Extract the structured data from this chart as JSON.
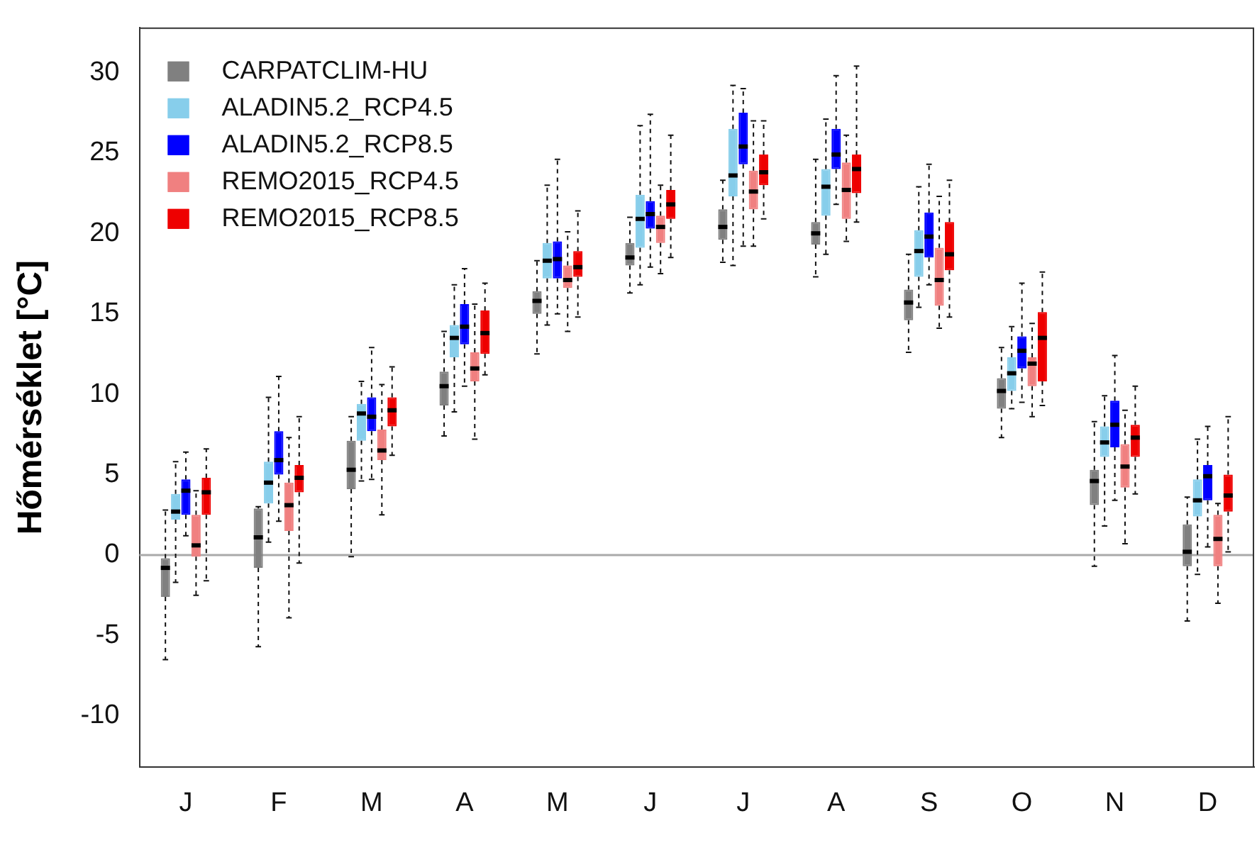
{
  "chart_data": {
    "type": "box",
    "ylabel": "Hőmérséklet [°C]",
    "categories": [
      "J",
      "F",
      "M",
      "A",
      "M",
      "J",
      "J",
      "A",
      "S",
      "O",
      "N",
      "D"
    ],
    "ylim": [
      -13.2,
      32.8
    ],
    "yticks": [
      -10,
      -5,
      0,
      5,
      10,
      15,
      20,
      25,
      30
    ],
    "grid": false,
    "legend": "top left",
    "ref_lines": [
      {
        "axis": "y",
        "value": 0,
        "color": "#aaaaaa"
      }
    ],
    "series": [
      {
        "name": "CARPATCLIM-HU",
        "color": "#808080",
        "boxes": [
          {
            "low": -6.5,
            "q1": -2.6,
            "median": -0.8,
            "q3": -0.2,
            "high": 2.8
          },
          {
            "low": -5.7,
            "q1": -0.8,
            "median": 1.1,
            "q3": 2.9,
            "high": 3.0
          },
          {
            "low": -0.1,
            "q1": 4.1,
            "median": 5.3,
            "q3": 7.1,
            "high": 8.6
          },
          {
            "low": 7.4,
            "q1": 9.3,
            "median": 10.5,
            "q3": 11.4,
            "high": 13.9
          },
          {
            "low": 12.5,
            "q1": 15.0,
            "median": 15.8,
            "q3": 16.4,
            "high": 18.3
          },
          {
            "low": 16.3,
            "q1": 18.0,
            "median": 18.5,
            "q3": 19.4,
            "high": 21.0
          },
          {
            "low": 18.2,
            "q1": 19.6,
            "median": 20.4,
            "q3": 21.5,
            "high": 23.3
          },
          {
            "low": 17.3,
            "q1": 19.3,
            "median": 20.0,
            "q3": 20.7,
            "high": 24.6
          },
          {
            "low": 12.6,
            "q1": 14.6,
            "median": 15.7,
            "q3": 16.5,
            "high": 18.7
          },
          {
            "low": 7.3,
            "q1": 9.1,
            "median": 10.2,
            "q3": 11.0,
            "high": 12.9
          },
          {
            "low": -0.7,
            "q1": 3.1,
            "median": 4.6,
            "q3": 5.3,
            "high": 8.3
          },
          {
            "low": -4.1,
            "q1": -0.7,
            "median": 0.2,
            "q3": 1.9,
            "high": 3.6
          }
        ]
      },
      {
        "name": "ALADIN5.2_RCP4.5",
        "color": "#87ceeb",
        "boxes": [
          {
            "low": -1.7,
            "q1": 2.2,
            "median": 2.7,
            "q3": 3.8,
            "high": 5.8
          },
          {
            "low": 0.8,
            "q1": 3.2,
            "median": 4.5,
            "q3": 5.8,
            "high": 9.8
          },
          {
            "low": 4.6,
            "q1": 7.1,
            "median": 8.8,
            "q3": 9.4,
            "high": 10.8
          },
          {
            "low": 8.9,
            "q1": 12.3,
            "median": 13.5,
            "q3": 14.3,
            "high": 16.8
          },
          {
            "low": 14.3,
            "q1": 17.2,
            "median": 18.3,
            "q3": 19.4,
            "high": 23.0
          },
          {
            "low": 16.8,
            "q1": 19.1,
            "median": 20.9,
            "q3": 22.4,
            "high": 26.7
          },
          {
            "low": 18.0,
            "q1": 22.3,
            "median": 23.6,
            "q3": 26.5,
            "high": 29.2
          },
          {
            "low": 18.7,
            "q1": 21.1,
            "median": 22.9,
            "q3": 24.0,
            "high": 27.1
          },
          {
            "low": 15.4,
            "q1": 17.3,
            "median": 18.9,
            "q3": 20.2,
            "high": 22.9
          },
          {
            "low": 9.1,
            "q1": 10.2,
            "median": 11.3,
            "q3": 12.3,
            "high": 14.2
          },
          {
            "low": 1.8,
            "q1": 6.1,
            "median": 7.0,
            "q3": 8.0,
            "high": 9.9
          },
          {
            "low": -1.2,
            "q1": 2.4,
            "median": 3.4,
            "q3": 4.7,
            "high": 7.2
          }
        ]
      },
      {
        "name": "ALADIN5.2_RCP8.5",
        "color": "#0000ff",
        "boxes": [
          {
            "low": 1.2,
            "q1": 2.5,
            "median": 4.0,
            "q3": 4.7,
            "high": 6.4
          },
          {
            "low": 2.1,
            "q1": 5.0,
            "median": 5.9,
            "q3": 7.7,
            "high": 11.1
          },
          {
            "low": 4.7,
            "q1": 7.7,
            "median": 8.6,
            "q3": 9.8,
            "high": 12.9
          },
          {
            "low": 10.5,
            "q1": 13.1,
            "median": 14.2,
            "q3": 15.6,
            "high": 17.8
          },
          {
            "low": 15.0,
            "q1": 17.2,
            "median": 18.4,
            "q3": 19.5,
            "high": 24.6
          },
          {
            "low": 17.9,
            "q1": 20.3,
            "median": 21.2,
            "q3": 22.0,
            "high": 27.4
          },
          {
            "low": 19.2,
            "q1": 24.3,
            "median": 25.4,
            "q3": 27.5,
            "high": 29.0
          },
          {
            "low": 21.8,
            "q1": 24.0,
            "median": 24.9,
            "q3": 26.5,
            "high": 29.8
          },
          {
            "low": 16.8,
            "q1": 18.5,
            "median": 19.8,
            "q3": 21.3,
            "high": 24.3
          },
          {
            "low": 9.5,
            "q1": 11.6,
            "median": 12.7,
            "q3": 13.6,
            "high": 16.9
          },
          {
            "low": 3.4,
            "q1": 6.7,
            "median": 8.1,
            "q3": 9.6,
            "high": 12.4
          },
          {
            "low": 0.5,
            "q1": 3.4,
            "median": 4.9,
            "q3": 5.6,
            "high": 8.0
          }
        ]
      },
      {
        "name": "REMO2015_RCP4.5",
        "color": "#f08080",
        "boxes": [
          {
            "low": -2.5,
            "q1": -0.1,
            "median": 0.6,
            "q3": 2.5,
            "high": 4.0
          },
          {
            "low": -3.9,
            "q1": 1.5,
            "median": 3.1,
            "q3": 4.5,
            "high": 7.3
          },
          {
            "low": 2.5,
            "q1": 5.9,
            "median": 6.5,
            "q3": 7.8,
            "high": 10.6
          },
          {
            "low": 7.2,
            "q1": 10.8,
            "median": 11.6,
            "q3": 12.6,
            "high": 15.6
          },
          {
            "low": 13.9,
            "q1": 16.6,
            "median": 17.1,
            "q3": 18.0,
            "high": 20.1
          },
          {
            "low": 17.5,
            "q1": 19.4,
            "median": 20.4,
            "q3": 21.1,
            "high": 23.0
          },
          {
            "low": 19.2,
            "q1": 21.5,
            "median": 22.6,
            "q3": 23.9,
            "high": 27.0
          },
          {
            "low": 19.5,
            "q1": 20.9,
            "median": 22.7,
            "q3": 24.4,
            "high": 26.1
          },
          {
            "low": 14.1,
            "q1": 15.5,
            "median": 17.1,
            "q3": 19.1,
            "high": 22.3
          },
          {
            "low": 8.6,
            "q1": 10.5,
            "median": 11.9,
            "q3": 12.3,
            "high": 14.4
          },
          {
            "low": 0.7,
            "q1": 4.2,
            "median": 5.5,
            "q3": 6.9,
            "high": 9.0
          },
          {
            "low": -3.0,
            "q1": -0.7,
            "median": 1.0,
            "q3": 2.5,
            "high": 3.2
          }
        ]
      },
      {
        "name": "REMO2015_RCP8.5",
        "color": "#ee0000",
        "boxes": [
          {
            "low": -1.6,
            "q1": 2.5,
            "median": 3.9,
            "q3": 4.8,
            "high": 6.6
          },
          {
            "low": -0.5,
            "q1": 3.9,
            "median": 4.8,
            "q3": 5.6,
            "high": 8.6
          },
          {
            "low": 6.2,
            "q1": 8.0,
            "median": 9.0,
            "q3": 9.8,
            "high": 11.7
          },
          {
            "low": 11.2,
            "q1": 12.5,
            "median": 13.8,
            "q3": 15.2,
            "high": 16.9
          },
          {
            "low": 14.8,
            "q1": 17.3,
            "median": 17.9,
            "q3": 18.9,
            "high": 21.4
          },
          {
            "low": 18.5,
            "q1": 20.9,
            "median": 21.8,
            "q3": 22.7,
            "high": 26.1
          },
          {
            "low": 20.9,
            "q1": 23.0,
            "median": 23.8,
            "q3": 24.9,
            "high": 27.0
          },
          {
            "low": 20.7,
            "q1": 22.5,
            "median": 24.0,
            "q3": 24.9,
            "high": 30.4
          },
          {
            "low": 14.8,
            "q1": 17.7,
            "median": 18.7,
            "q3": 20.7,
            "high": 23.3
          },
          {
            "low": 9.3,
            "q1": 10.8,
            "median": 13.5,
            "q3": 15.1,
            "high": 17.6
          },
          {
            "low": 3.8,
            "q1": 6.1,
            "median": 7.3,
            "q3": 8.1,
            "high": 10.5
          },
          {
            "low": 0.2,
            "q1": 2.7,
            "median": 3.7,
            "q3": 5.0,
            "high": 8.6
          }
        ]
      }
    ]
  }
}
